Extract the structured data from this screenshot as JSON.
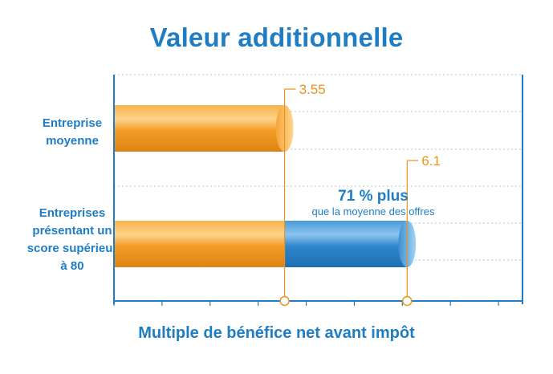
{
  "chart_data": {
    "type": "bar",
    "orientation": "horizontal",
    "title": "Valeur additionnelle",
    "xlabel": "Multiple de bénéfice net avant impôt",
    "ylabel": "",
    "categories": [
      "Entreprise moyenne",
      "Entreprises présentant un score supérieur à 80"
    ],
    "values": [
      3.55,
      6.1
    ],
    "value_labels": [
      "3.55",
      "6.1"
    ],
    "xlim": [
      0,
      8.5
    ],
    "grid": true,
    "annotation": {
      "title": "71 % plus",
      "subtitle": "que la moyenne des offres"
    },
    "colors": {
      "base": "#ef9a24",
      "extra": "#2d88cf",
      "text": "#1f7dc4",
      "value": "#e8941e"
    }
  }
}
